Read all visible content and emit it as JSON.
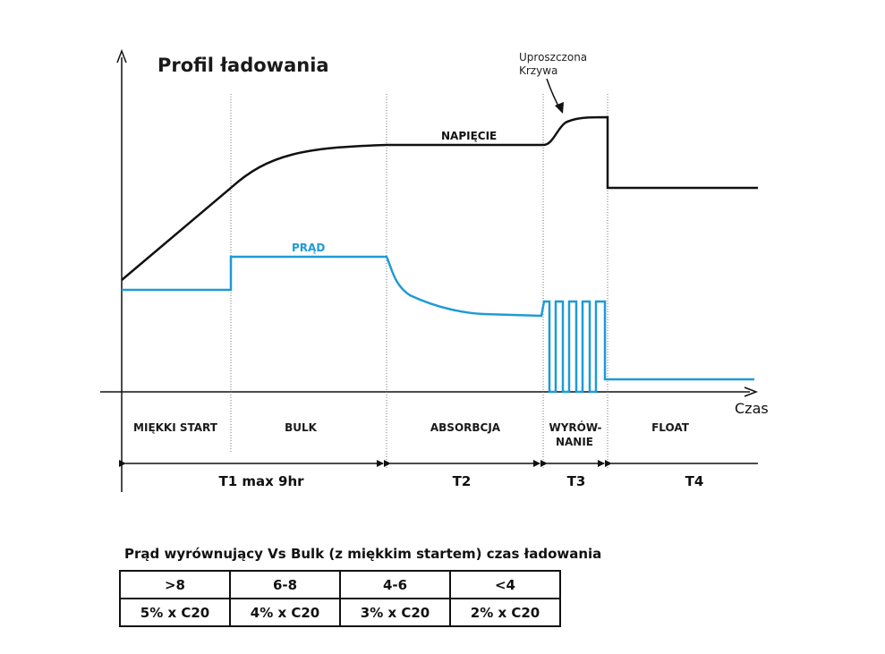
{
  "title": "Profil ładowania",
  "annotation": [
    "Uproszczona",
    "Krzywa"
  ],
  "curves": {
    "voltage_label": "NAPIĘCIE",
    "current_label": "PRĄD",
    "voltage_color": "#111111",
    "current_color": "#1f9ad8"
  },
  "x_axis_label": "Czas",
  "phases": [
    "MIĘKKI START",
    "BULK",
    "ABSORBCJA",
    "WYRÓW-",
    "NANIE",
    "FLOAT"
  ],
  "periods": [
    "T1 max 9hr",
    "T2",
    "T3",
    "T4"
  ],
  "table": {
    "title": "Prąd wyrównujący Vs Bulk (z miękkim startem) czas ładowania",
    "header": [
      ">8",
      "6-8",
      "4-6",
      "<4"
    ],
    "values": [
      "5% x C20",
      "4% x C20",
      "3% x C20",
      "2% x C20"
    ]
  }
}
